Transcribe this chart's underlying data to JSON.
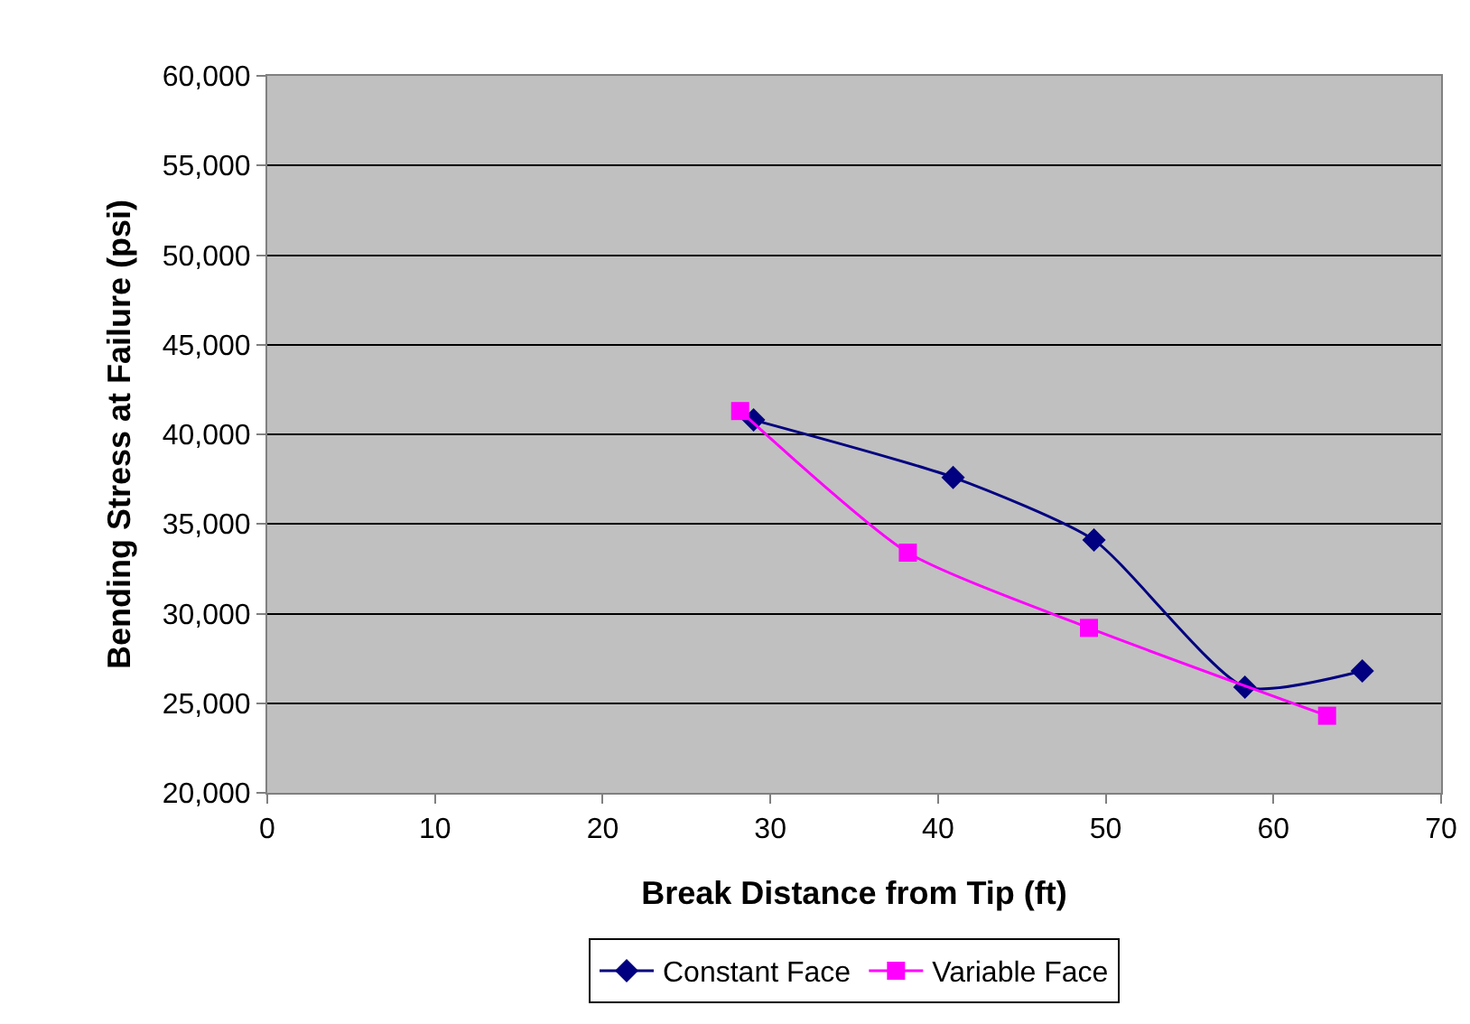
{
  "chart_data": {
    "type": "line",
    "xlabel": "Break Distance from Tip (ft)",
    "ylabel": "Bending Stress at Failure (psi)",
    "xlim": [
      0,
      70
    ],
    "xticks": [
      0,
      10,
      20,
      30,
      40,
      50,
      60,
      70
    ],
    "ylim": [
      20000,
      60000
    ],
    "yticks": [
      {
        "value": 20000,
        "label": "20,000"
      },
      {
        "value": 25000,
        "label": "25,000"
      },
      {
        "value": 30000,
        "label": "30,000"
      },
      {
        "value": 35000,
        "label": "35,000"
      },
      {
        "value": 40000,
        "label": "40,000"
      },
      {
        "value": 45000,
        "label": "45,000"
      },
      {
        "value": 50000,
        "label": "50,000"
      },
      {
        "value": 55000,
        "label": "55,000"
      },
      {
        "value": 60000,
        "label": "60,000"
      }
    ],
    "grid": "y",
    "legend": "bottom",
    "series": [
      {
        "name": "Constant Face",
        "color": "#000080",
        "marker": "diamond",
        "x": [
          29.0,
          40.9,
          49.3,
          58.3,
          65.3
        ],
        "values": [
          40800,
          37600,
          34100,
          25900,
          26800
        ]
      },
      {
        "name": "Variable Face",
        "color": "#ff00ff",
        "marker": "square",
        "x": [
          28.2,
          38.2,
          49.0,
          63.2
        ],
        "values": [
          41300,
          33400,
          29200,
          24300
        ]
      }
    ]
  }
}
